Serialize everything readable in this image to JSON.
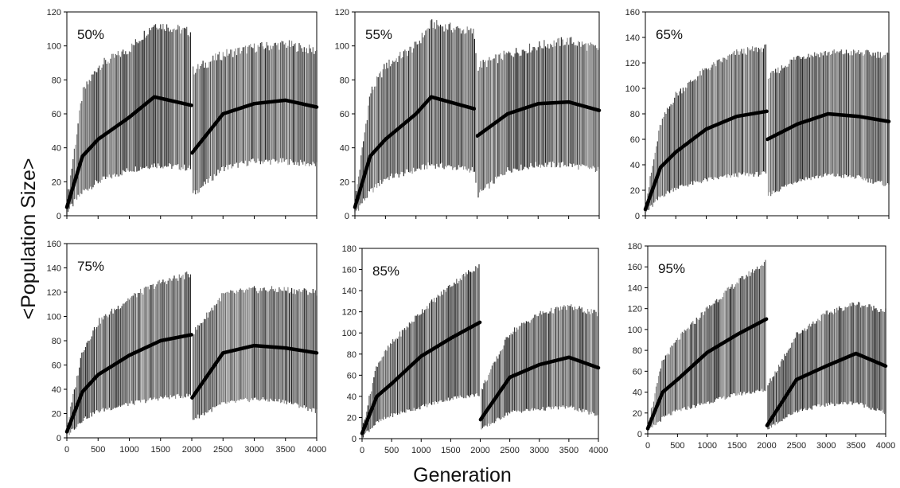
{
  "figure": {
    "ylabel": "<Population Size>",
    "xlabel": "Generation"
  },
  "chart_data": [
    {
      "type": "line",
      "label": "50%",
      "ylim": [
        0,
        120
      ],
      "yticks": [
        0,
        20,
        40,
        60,
        80,
        100,
        120
      ],
      "x": [
        0,
        250,
        500,
        1000,
        1400,
        1995,
        2005,
        2500,
        3000,
        3500,
        4000
      ],
      "mean": [
        5,
        35,
        45,
        58,
        70,
        65,
        37,
        60,
        66,
        68,
        64
      ],
      "upper": [
        8,
        72,
        88,
        98,
        113,
        108,
        85,
        95,
        99,
        101,
        97
      ],
      "lower": [
        2,
        14,
        20,
        27,
        30,
        28,
        12,
        28,
        32,
        32,
        30
      ]
    },
    {
      "type": "line",
      "label": "55%",
      "ylim": [
        0,
        120
      ],
      "yticks": [
        0,
        20,
        40,
        60,
        80,
        100,
        120
      ],
      "x": [
        0,
        250,
        500,
        1000,
        1250,
        1950,
        2005,
        2500,
        3000,
        3500,
        4000
      ],
      "mean": [
        5,
        35,
        45,
        60,
        70,
        63,
        47,
        60,
        66,
        67,
        62
      ],
      "upper": [
        8,
        72,
        88,
        100,
        113,
        108,
        88,
        95,
        100,
        103,
        98
      ],
      "lower": [
        2,
        14,
        22,
        27,
        30,
        27,
        12,
        27,
        30,
        30,
        27
      ]
    },
    {
      "type": "line",
      "label": "65%",
      "ylim": [
        0,
        160
      ],
      "yticks": [
        0,
        20,
        40,
        60,
        80,
        100,
        120,
        140,
        160
      ],
      "x": [
        0,
        250,
        500,
        1000,
        1500,
        1995,
        2005,
        2500,
        3000,
        3500,
        4000
      ],
      "mean": [
        5,
        38,
        50,
        68,
        78,
        82,
        60,
        72,
        80,
        78,
        74
      ],
      "upper": [
        8,
        72,
        95,
        115,
        128,
        132,
        108,
        125,
        128,
        128,
        126
      ],
      "lower": [
        2,
        15,
        22,
        28,
        32,
        33,
        16,
        28,
        32,
        30,
        24
      ]
    },
    {
      "type": "line",
      "label": "75%",
      "ylim": [
        0,
        160
      ],
      "yticks": [
        0,
        20,
        40,
        60,
        80,
        100,
        120,
        140,
        160
      ],
      "x": [
        0,
        250,
        500,
        1000,
        1500,
        1995,
        2005,
        2500,
        3000,
        3500,
        4000
      ],
      "mean": [
        5,
        38,
        52,
        68,
        80,
        85,
        33,
        70,
        76,
        74,
        70
      ],
      "upper": [
        8,
        72,
        95,
        115,
        128,
        135,
        85,
        118,
        122,
        122,
        120
      ],
      "lower": [
        2,
        15,
        22,
        28,
        33,
        35,
        15,
        28,
        32,
        30,
        22
      ]
    },
    {
      "type": "line",
      "label": "85%",
      "ylim": [
        0,
        180
      ],
      "yticks": [
        0,
        20,
        40,
        60,
        80,
        100,
        120,
        140,
        160,
        180
      ],
      "x": [
        0,
        250,
        500,
        1000,
        1500,
        1995,
        2005,
        2500,
        3000,
        3500,
        4000
      ],
      "mean": [
        5,
        40,
        52,
        78,
        95,
        110,
        18,
        58,
        70,
        77,
        67
      ],
      "upper": [
        8,
        70,
        90,
        120,
        145,
        165,
        45,
        100,
        118,
        125,
        118
      ],
      "lower": [
        2,
        15,
        22,
        30,
        38,
        42,
        8,
        25,
        28,
        30,
        22
      ]
    },
    {
      "type": "line",
      "label": "95%",
      "ylim": [
        0,
        180
      ],
      "yticks": [
        0,
        20,
        40,
        60,
        80,
        100,
        120,
        140,
        160,
        180
      ],
      "x": [
        0,
        250,
        500,
        1000,
        1500,
        1995,
        2005,
        2500,
        3000,
        3500,
        4000
      ],
      "mean": [
        5,
        40,
        52,
        78,
        95,
        110,
        8,
        52,
        65,
        77,
        65
      ],
      "upper": [
        8,
        70,
        90,
        120,
        145,
        165,
        45,
        95,
        115,
        125,
        118
      ],
      "lower": [
        2,
        15,
        22,
        30,
        38,
        42,
        5,
        22,
        28,
        30,
        20
      ]
    }
  ],
  "xticks": [
    0,
    500,
    1000,
    1500,
    2000,
    2500,
    3000,
    3500,
    4000
  ]
}
